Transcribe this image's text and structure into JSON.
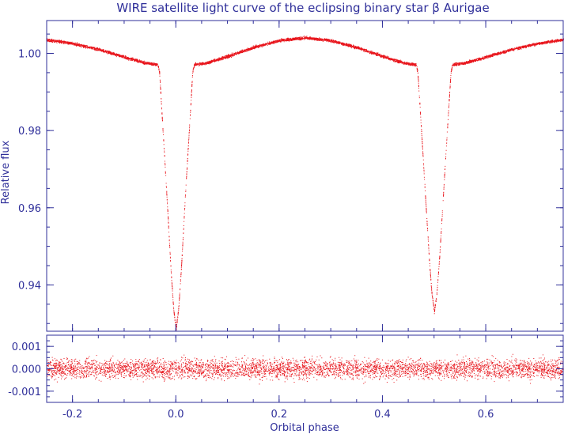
{
  "chart_data": [
    {
      "type": "scatter",
      "title": "WIRE satellite light curve of the eclipsing binary star β Aurigae",
      "ylabel": "Relative flux",
      "xlabel": "",
      "xlim": [
        -0.25,
        0.75
      ],
      "ylim": [
        0.928,
        1.0085
      ],
      "x_ticks": [
        -0.2,
        0.0,
        0.2,
        0.4,
        0.6
      ],
      "y_ticks": [
        0.94,
        0.96,
        0.98,
        1.0
      ],
      "y_tick_labels": [
        "0.94",
        "0.96",
        "0.98",
        "1.00"
      ],
      "series": [
        {
          "color": "#e8141b",
          "x": [
            -0.25,
            -0.2,
            -0.15,
            -0.1,
            -0.06,
            -0.035,
            -0.032,
            -0.029,
            -0.025,
            -0.02,
            -0.015,
            -0.01,
            -0.005,
            0.0,
            0.005,
            0.01,
            0.015,
            0.02,
            0.025,
            0.029,
            0.032,
            0.035,
            0.06,
            0.1,
            0.15,
            0.2,
            0.25,
            0.3,
            0.35,
            0.4,
            0.44,
            0.465,
            0.468,
            0.471,
            0.475,
            0.48,
            0.485,
            0.49,
            0.495,
            0.5,
            0.505,
            0.51,
            0.515,
            0.52,
            0.525,
            0.529,
            0.532,
            0.535,
            0.56,
            0.6,
            0.65,
            0.7,
            0.75
          ],
          "y": [
            1.0035,
            1.0025,
            1.001,
            0.999,
            0.9975,
            0.997,
            0.995,
            0.988,
            0.979,
            0.968,
            0.956,
            0.944,
            0.934,
            0.9285,
            0.934,
            0.944,
            0.956,
            0.968,
            0.979,
            0.988,
            0.995,
            0.997,
            0.9975,
            0.9992,
            1.0015,
            1.0033,
            1.004,
            1.0033,
            1.0015,
            0.9992,
            0.9975,
            0.997,
            0.995,
            0.9885,
            0.98,
            0.969,
            0.958,
            0.947,
            0.938,
            0.933,
            0.938,
            0.947,
            0.958,
            0.969,
            0.98,
            0.9885,
            0.995,
            0.997,
            0.9975,
            0.999,
            1.001,
            1.0025,
            1.0035
          ]
        }
      ]
    },
    {
      "type": "scatter",
      "title": "",
      "ylabel": "",
      "xlabel": "Orbital phase",
      "xlim": [
        -0.25,
        0.75
      ],
      "ylim": [
        -0.0015,
        0.0015
      ],
      "x_ticks": [
        -0.2,
        0.0,
        0.2,
        0.4,
        0.6
      ],
      "x_tick_labels": [
        "-0.2",
        "0.0",
        "0.2",
        "0.4",
        "0.6"
      ],
      "y_ticks": [
        -0.001,
        0.0,
        0.001
      ],
      "y_tick_labels": [
        "-0.001",
        "0.000",
        "0.001"
      ],
      "series": [
        {
          "color": "#e8141b",
          "description": "residuals scattered around 0, typical spread ±0.0004",
          "x": [
            -0.25,
            0.75
          ],
          "y": [
            0.0,
            0.0
          ]
        }
      ]
    }
  ]
}
